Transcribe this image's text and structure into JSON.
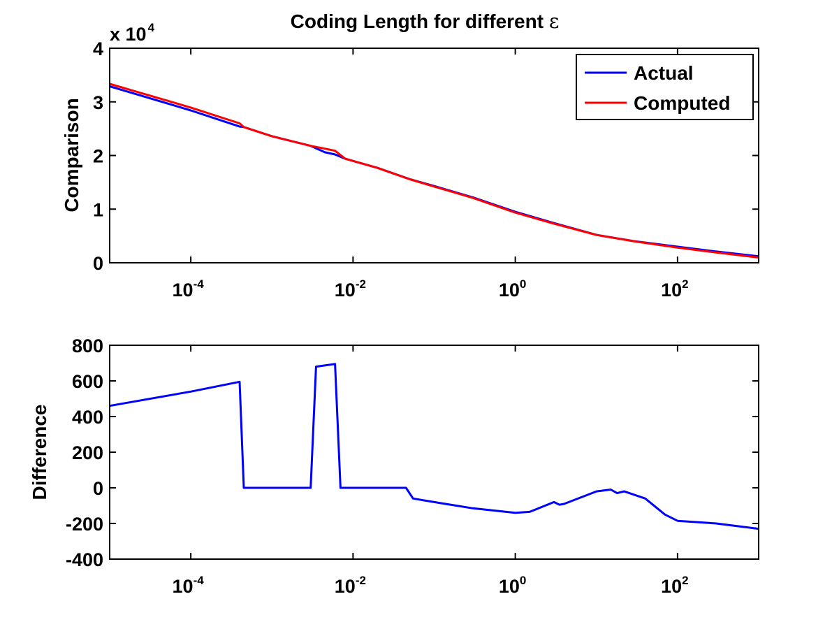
{
  "figure": {
    "title_prefix": "Coding Length for different ",
    "title_symbol": "ε"
  },
  "chart_data": [
    {
      "type": "line",
      "title": "Coding Length for different ε",
      "xlabel": "",
      "ylabel": "Comparison",
      "xscale": "log",
      "xlim": [
        1e-05,
        1000
      ],
      "ylim": [
        0,
        40000
      ],
      "y_multiplier_label": {
        "base": "x 10",
        "exponent": "4"
      },
      "y_ticks": [
        0,
        1,
        2,
        3,
        4
      ],
      "x_ticks": [
        {
          "value": 0.0001,
          "base": "10",
          "exp": "-4"
        },
        {
          "value": 0.01,
          "base": "10",
          "exp": "-2"
        },
        {
          "value": 1,
          "base": "10",
          "exp": "0"
        },
        {
          "value": 100,
          "base": "10",
          "exp": "2"
        }
      ],
      "grid": false,
      "legend_position": "top-right",
      "series": [
        {
          "name": "Actual",
          "color": "#0000ff",
          "x": [
            1e-05,
            0.0001,
            0.0004,
            0.00045,
            0.001,
            0.003,
            0.0045,
            0.006,
            0.008,
            0.02,
            0.05,
            0.1,
            0.3,
            1,
            3,
            10,
            30,
            100,
            300,
            1000
          ],
          "y": [
            32900,
            28400,
            25400,
            25300,
            23600,
            21800,
            20600,
            20200,
            19400,
            17700,
            15600,
            14300,
            12200,
            9500,
            7400,
            5200,
            4000,
            3000,
            2100,
            1200
          ]
        },
        {
          "name": "Computed",
          "color": "#ff0000",
          "x": [
            1e-05,
            0.0001,
            0.0004,
            0.00045,
            0.001,
            0.003,
            0.0045,
            0.006,
            0.008,
            0.02,
            0.05,
            0.1,
            0.3,
            1,
            3,
            10,
            30,
            100,
            300,
            1000
          ],
          "y": [
            33360,
            28940,
            25990,
            25300,
            23600,
            21800,
            21280,
            20890,
            19400,
            17700,
            15570,
            14220,
            12090,
            9360,
            7300,
            5180,
            3970,
            2830,
            1910,
            980
          ]
        }
      ]
    },
    {
      "type": "line",
      "title": "",
      "xlabel": "",
      "ylabel": "Difference",
      "xscale": "log",
      "xlim": [
        1e-05,
        1000
      ],
      "ylim": [
        -400,
        800
      ],
      "y_ticks": [
        -400,
        -200,
        0,
        200,
        400,
        600,
        800
      ],
      "x_ticks": [
        {
          "value": 0.0001,
          "base": "10",
          "exp": "-4"
        },
        {
          "value": 0.01,
          "base": "10",
          "exp": "-2"
        },
        {
          "value": 1,
          "base": "10",
          "exp": "0"
        },
        {
          "value": 100,
          "base": "10",
          "exp": "2"
        }
      ],
      "grid": false,
      "series": [
        {
          "color": "#0000ff",
          "x": [
            1e-05,
            0.0001,
            0.0004,
            0.00045,
            0.003,
            0.0035,
            0.006,
            0.007,
            0.02,
            0.045,
            0.055,
            0.1,
            0.3,
            1,
            1.5,
            3,
            3.5,
            4,
            10,
            15,
            18,
            22,
            40,
            70,
            100,
            300,
            1000
          ],
          "y": [
            460,
            540,
            595,
            0,
            0,
            680,
            695,
            0,
            0,
            0,
            -60,
            -80,
            -115,
            -140,
            -135,
            -80,
            -95,
            -90,
            -20,
            -10,
            -30,
            -20,
            -60,
            -150,
            -185,
            -200,
            -230
          ]
        }
      ]
    }
  ]
}
